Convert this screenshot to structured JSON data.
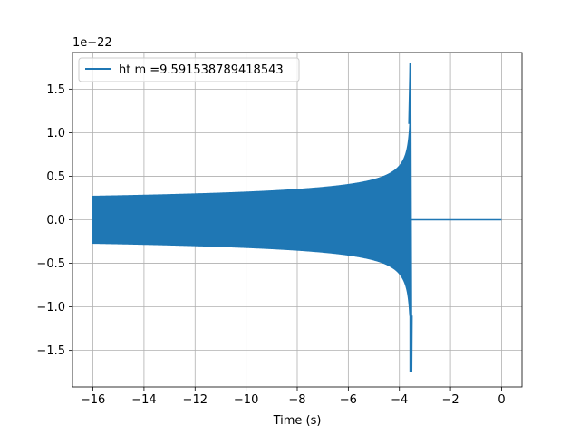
{
  "chart_data": {
    "type": "line",
    "title": "",
    "xlabel": "Time (s)",
    "ylabel": "",
    "y_offset_label": "1e−22",
    "xlim": [
      -16.8,
      0.8
    ],
    "ylim": [
      -1.92,
      1.92
    ],
    "x_ticks": [
      -16,
      -14,
      -12,
      -10,
      -8,
      -6,
      -4,
      -2,
      0
    ],
    "x_tick_labels": [
      "−16",
      "−14",
      "−12",
      "−10",
      "−8",
      "−6",
      "−4",
      "−2",
      "0"
    ],
    "y_ticks": [
      -1.5,
      -1.0,
      -0.5,
      0.0,
      0.5,
      1.0,
      1.5
    ],
    "y_tick_labels": [
      "−1.5",
      "−1.0",
      "−0.5",
      "0.0",
      "0.5",
      "1.0",
      "1.5"
    ],
    "grid": true,
    "legend": "upper-left",
    "series": [
      {
        "name": "ht m =9.591538789418543",
        "color": "#1f77b4",
        "waveform": {
          "start": -16.0,
          "merger": -3.55,
          "end": 0.0,
          "envelope_start": 0.27,
          "peak_upper": 1.8,
          "peak_lower": -1.75,
          "post_merger_value": 0.0
        }
      }
    ]
  }
}
